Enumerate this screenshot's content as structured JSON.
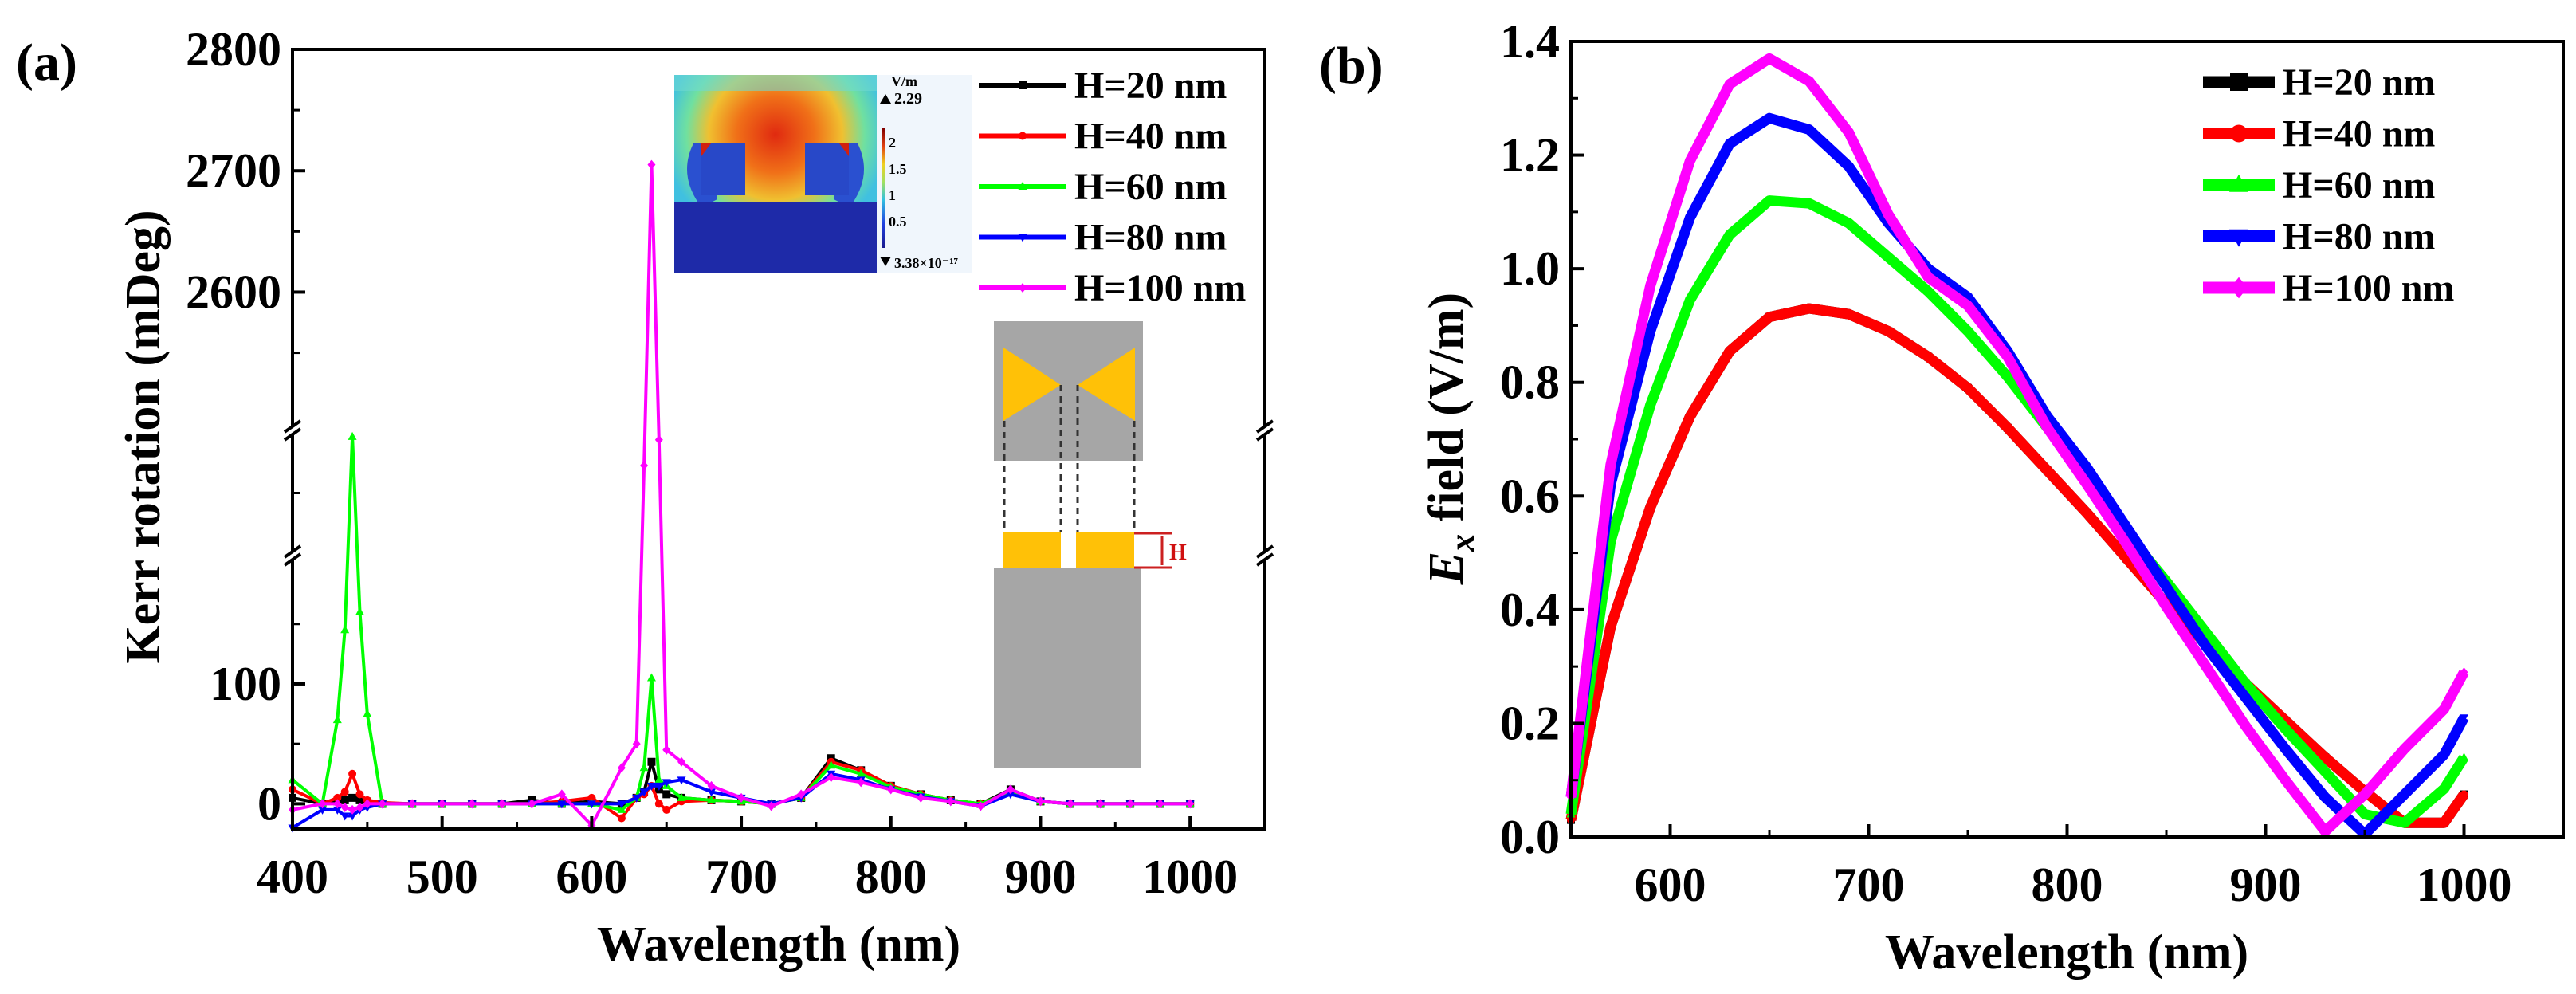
{
  "chart_data": [
    {
      "panel_label": "(a)",
      "type": "line",
      "xlabel": "Wavelength (nm)",
      "ylabel": "Kerr rotation (mDeg)",
      "xlim": [
        400,
        1050
      ],
      "x_ticks": [
        "400",
        "500",
        "600",
        "700",
        "800",
        "900",
        "1000"
      ],
      "y_ticks": [
        "0",
        "100",
        "2600",
        "2700",
        "2800"
      ],
      "y_axis_break": true,
      "y_segments": [
        [
          -21,
          207
        ],
        [
          200,
          400
        ],
        [
          2486,
          2800
        ]
      ],
      "legend_position": "top-right",
      "inset": {
        "colorbar_unit": "V/m",
        "colorbar_max": "2.29",
        "colorbar_min": "3.38×10⁻¹⁷",
        "colorbar_ticks": [
          "2",
          "1.5",
          "1",
          "0.5"
        ],
        "schematic_label": "H"
      },
      "x": [
        400,
        420,
        430,
        435,
        440,
        445,
        450,
        460,
        480,
        500,
        520,
        540,
        560,
        580,
        600,
        620,
        630,
        635,
        640,
        645,
        650,
        660,
        680,
        700,
        720,
        740,
        760,
        780,
        800,
        820,
        840,
        860,
        880,
        900,
        920,
        940,
        960,
        980,
        1000
      ],
      "series": [
        {
          "name": "H=20 nm",
          "color": "#000000",
          "marker": "square",
          "values": [
            5,
            0,
            2,
            3,
            5,
            3,
            2,
            0,
            0,
            0,
            0,
            0,
            3,
            0,
            2,
            0,
            5,
            10,
            35,
            12,
            8,
            5,
            3,
            2,
            0,
            5,
            38,
            28,
            15,
            8,
            3,
            0,
            12,
            2,
            0,
            0,
            0,
            0,
            0
          ]
        },
        {
          "name": "H=40 nm",
          "color": "#ff0000",
          "marker": "circle",
          "values": [
            12,
            0,
            5,
            10,
            25,
            8,
            3,
            1,
            0,
            0,
            0,
            0,
            0,
            2,
            5,
            -12,
            5,
            8,
            15,
            0,
            -5,
            2,
            3,
            2,
            0,
            5,
            35,
            28,
            15,
            8,
            3,
            0,
            10,
            2,
            0,
            0,
            0,
            0,
            0
          ]
        },
        {
          "name": "H=60 nm",
          "color": "#00ff00",
          "marker": "triangle-up",
          "values": [
            20,
            0,
            70,
            145,
            390,
            160,
            75,
            0,
            0,
            0,
            0,
            0,
            0,
            0,
            0,
            -5,
            5,
            30,
            105,
            20,
            15,
            5,
            3,
            2,
            0,
            5,
            32,
            25,
            14,
            8,
            3,
            0,
            10,
            2,
            0,
            0,
            0,
            0,
            0
          ]
        },
        {
          "name": "H=80 nm",
          "color": "#0000ff",
          "marker": "triangle-down",
          "values": [
            -20,
            -5,
            -5,
            -10,
            -10,
            -5,
            -3,
            0,
            0,
            0,
            0,
            0,
            0,
            0,
            0,
            0,
            5,
            10,
            15,
            15,
            18,
            20,
            10,
            5,
            0,
            5,
            25,
            20,
            12,
            6,
            2,
            -2,
            8,
            2,
            0,
            0,
            0,
            0,
            0
          ]
        },
        {
          "name": "H=100 nm",
          "color": "#ff00ff",
          "marker": "diamond",
          "values": [
            -5,
            0,
            0,
            -3,
            -5,
            -3,
            0,
            0,
            0,
            0,
            0,
            0,
            0,
            8,
            -18,
            30,
            50,
            344,
            2705,
            385,
            45,
            35,
            15,
            5,
            -2,
            8,
            22,
            18,
            12,
            5,
            2,
            -2,
            12,
            2,
            0,
            0,
            0,
            0,
            0
          ]
        }
      ]
    },
    {
      "panel_label": "(b)",
      "type": "line",
      "xlabel": "Wavelength (nm)",
      "ylabel_main": "E",
      "ylabel_sub": "x",
      "ylabel_rest": " field (V/m)",
      "xlim": [
        550,
        1050
      ],
      "ylim": [
        0,
        1.4
      ],
      "x_ticks": [
        "600",
        "700",
        "800",
        "900",
        "1000"
      ],
      "y_ticks": [
        "0.0",
        "0.2",
        "0.4",
        "0.6",
        "0.8",
        "1.0",
        "1.2",
        "1.4"
      ],
      "legend_position": "top-right",
      "x": [
        550,
        570,
        590,
        610,
        630,
        650,
        670,
        690,
        710,
        730,
        750,
        770,
        790,
        810,
        830,
        850,
        870,
        890,
        910,
        930,
        950,
        970,
        990,
        1000
      ],
      "series": [
        {
          "name": "H=20 nm",
          "color": "#000000",
          "marker": "square",
          "values": [
            0.03,
            0.37,
            0.58,
            0.74,
            0.855,
            0.915,
            0.93,
            0.92,
            0.89,
            0.845,
            0.79,
            0.72,
            0.645,
            0.57,
            0.49,
            0.41,
            0.34,
            0.27,
            0.205,
            0.14,
            0.08,
            0.025,
            0.025,
            0.075
          ]
        },
        {
          "name": "H=40 nm",
          "color": "#ff0000",
          "marker": "circle",
          "values": [
            0.03,
            0.37,
            0.58,
            0.74,
            0.855,
            0.915,
            0.93,
            0.92,
            0.89,
            0.845,
            0.79,
            0.72,
            0.645,
            0.57,
            0.49,
            0.41,
            0.34,
            0.27,
            0.205,
            0.14,
            0.08,
            0.025,
            0.025,
            0.075
          ]
        },
        {
          "name": "H=60 nm",
          "color": "#00ff00",
          "marker": "triangle-up",
          "values": [
            0.04,
            0.52,
            0.76,
            0.945,
            1.06,
            1.12,
            1.115,
            1.08,
            1.02,
            0.96,
            0.89,
            0.81,
            0.72,
            0.63,
            0.535,
            0.45,
            0.36,
            0.27,
            0.19,
            0.115,
            0.04,
            0.025,
            0.085,
            0.14
          ]
        },
        {
          "name": "H=80 nm",
          "color": "#0000ff",
          "marker": "triangle-down",
          "values": [
            0.07,
            0.62,
            0.89,
            1.09,
            1.22,
            1.265,
            1.245,
            1.18,
            1.08,
            1.0,
            0.95,
            0.855,
            0.74,
            0.65,
            0.545,
            0.44,
            0.335,
            0.245,
            0.155,
            0.07,
            0.005,
            0.075,
            0.145,
            0.21
          ]
        },
        {
          "name": "H=100 nm",
          "color": "#ff00ff",
          "marker": "diamond",
          "values": [
            0.07,
            0.655,
            0.97,
            1.19,
            1.325,
            1.37,
            1.33,
            1.24,
            1.095,
            0.985,
            0.935,
            0.845,
            0.72,
            0.62,
            0.515,
            0.405,
            0.3,
            0.195,
            0.1,
            0.01,
            0.075,
            0.155,
            0.225,
            0.29
          ]
        }
      ]
    }
  ]
}
